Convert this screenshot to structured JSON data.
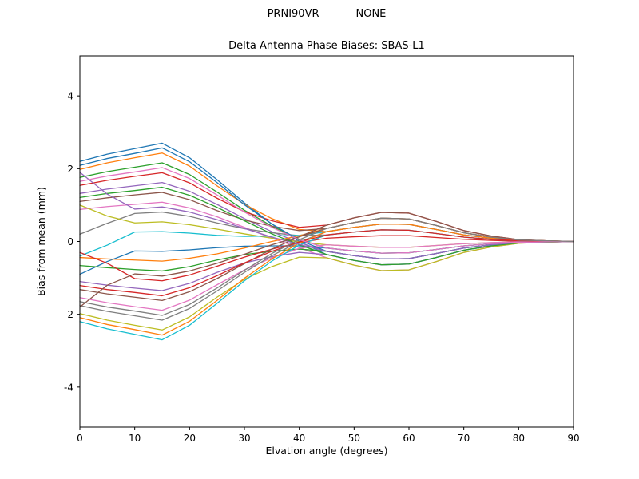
{
  "figure": {
    "suptitle_left": "PRNI90VR",
    "suptitle_right": "NONE",
    "title": "Delta Antenna Phase Biases: SBAS-L1"
  },
  "chart_data": {
    "type": "line",
    "suptitle": "PRNI90VR        NONE",
    "title": "Delta Antenna Phase Biases: SBAS-L1",
    "xlabel": "Elvation angle (degrees)",
    "ylabel": "Bias from mean (mm)",
    "xlim": [
      0,
      90
    ],
    "ylim": [
      -5.1,
      5.1
    ],
    "xticks": [
      0,
      10,
      20,
      30,
      40,
      50,
      60,
      70,
      80,
      90
    ],
    "yticks": [
      -4,
      -2,
      0,
      2,
      4
    ],
    "grid": false,
    "legend": "none",
    "x": [
      0,
      5,
      10,
      15,
      20,
      25,
      30,
      35,
      40,
      45,
      50,
      55,
      60,
      65,
      70,
      75,
      80,
      85,
      90
    ],
    "series": [
      {
        "name": "line-01",
        "color": "#1f77b4",
        "values": [
          2.2,
          2.4,
          2.55,
          2.7,
          2.3,
          1.7,
          1.06,
          0.48,
          0.0,
          -0.36,
          -0.52,
          -0.64,
          -0.62,
          -0.44,
          -0.24,
          -0.12,
          -0.04,
          -0.02,
          0
        ]
      },
      {
        "name": "line-02",
        "color": "#ff7f0e",
        "values": [
          1.98,
          2.16,
          2.3,
          2.43,
          2.07,
          1.53,
          1.02,
          0.63,
          0.33,
          0.27,
          0.39,
          0.48,
          0.47,
          0.33,
          0.18,
          0.09,
          0.03,
          0.01,
          0
        ]
      },
      {
        "name": "line-03",
        "color": "#2ca02c",
        "values": [
          1.76,
          1.92,
          2.04,
          2.16,
          1.84,
          1.36,
          0.86,
          0.42,
          0.06,
          -0.18,
          -0.26,
          -0.32,
          -0.31,
          -0.22,
          -0.12,
          -0.06,
          -0.02,
          -0.01,
          0
        ]
      },
      {
        "name": "line-04",
        "color": "#d62728",
        "values": [
          1.54,
          1.68,
          1.79,
          1.89,
          1.61,
          1.19,
          0.82,
          0.57,
          0.39,
          0.45,
          0.65,
          0.8,
          0.78,
          0.55,
          0.3,
          0.15,
          0.05,
          0.02,
          0
        ]
      },
      {
        "name": "line-05",
        "color": "#9467bd",
        "values": [
          1.32,
          1.44,
          1.53,
          1.62,
          1.38,
          1.02,
          0.63,
          0.27,
          -0.03,
          -0.27,
          -0.39,
          -0.48,
          -0.47,
          -0.33,
          -0.18,
          -0.09,
          -0.03,
          -0.01,
          0
        ]
      },
      {
        "name": "line-06",
        "color": "#8c564b",
        "values": [
          1.1,
          1.2,
          1.28,
          1.35,
          1.15,
          0.85,
          0.59,
          0.42,
          0.3,
          0.36,
          0.52,
          0.64,
          0.62,
          0.44,
          0.24,
          0.12,
          0.04,
          0.02,
          0
        ]
      },
      {
        "name": "line-07",
        "color": "#e377c2",
        "values": [
          0.88,
          0.96,
          1.02,
          1.08,
          0.92,
          0.68,
          0.39,
          0.09,
          -0.17,
          -0.45,
          -0.65,
          -0.8,
          -0.78,
          -0.55,
          -0.3,
          -0.15,
          -0.05,
          -0.02,
          0
        ]
      },
      {
        "name": "line-08",
        "color": "#7f7f7f",
        "values": [
          0.2,
          0.5,
          0.77,
          0.81,
          0.69,
          0.51,
          0.35,
          0.24,
          0.16,
          0.18,
          0.26,
          0.32,
          0.31,
          0.22,
          0.12,
          0.06,
          0.02,
          0.01,
          0
        ]
      },
      {
        "name": "line-09",
        "color": "#bcbd22",
        "values": [
          1.0,
          0.7,
          0.51,
          0.54,
          0.46,
          0.34,
          0.21,
          0.09,
          -0.01,
          -0.09,
          -0.13,
          -0.16,
          -0.16,
          -0.11,
          -0.06,
          -0.03,
          -0.01,
          0,
          0
        ]
      },
      {
        "name": "line-10",
        "color": "#17becf",
        "values": [
          -0.4,
          -0.1,
          0.26,
          0.27,
          0.23,
          0.17,
          0.14,
          0.15,
          0.17,
          0.27,
          0.39,
          0.48,
          0.47,
          0.33,
          0.18,
          0.09,
          0.03,
          0.01,
          0
        ]
      },
      {
        "name": "line-11",
        "color": "#1f77b4",
        "values": [
          -0.9,
          -0.55,
          -0.26,
          -0.27,
          -0.23,
          -0.17,
          -0.13,
          -0.12,
          -0.12,
          -0.18,
          -0.26,
          -0.32,
          -0.31,
          -0.22,
          -0.12,
          -0.06,
          -0.02,
          -0.01,
          0
        ]
      },
      {
        "name": "line-12",
        "color": "#ff7f0e",
        "values": [
          -0.44,
          -0.48,
          -0.51,
          -0.54,
          -0.46,
          -0.34,
          -0.18,
          0.0,
          0.16,
          0.36,
          0.52,
          0.64,
          0.62,
          0.44,
          0.24,
          0.12,
          0.04,
          0.02,
          0
        ]
      },
      {
        "name": "line-13",
        "color": "#2ca02c",
        "values": [
          -0.66,
          -0.72,
          -0.77,
          -0.81,
          -0.69,
          -0.51,
          -0.36,
          -0.27,
          -0.21,
          -0.27,
          -0.39,
          -0.48,
          -0.47,
          -0.33,
          -0.18,
          -0.09,
          -0.03,
          -0.01,
          0
        ]
      },
      {
        "name": "line-14",
        "color": "#d62728",
        "values": [
          -0.3,
          -0.6,
          -1.02,
          -1.08,
          -0.92,
          -0.68,
          -0.43,
          -0.21,
          -0.03,
          0.09,
          0.13,
          0.16,
          0.16,
          0.11,
          0.06,
          0.03,
          0.01,
          0,
          0
        ]
      },
      {
        "name": "line-15",
        "color": "#9467bd",
        "values": [
          -1.1,
          -1.2,
          -1.28,
          -1.35,
          -1.15,
          -0.85,
          -0.59,
          -0.42,
          -0.3,
          -0.36,
          -0.52,
          -0.64,
          -0.62,
          -0.44,
          -0.24,
          -0.12,
          -0.04,
          -0.02,
          0
        ]
      },
      {
        "name": "line-16",
        "color": "#8c564b",
        "values": [
          -1.32,
          -1.44,
          -1.53,
          -1.62,
          -1.38,
          -1.02,
          -0.61,
          -0.21,
          0.13,
          0.45,
          0.65,
          0.8,
          0.78,
          0.55,
          0.3,
          0.15,
          0.05,
          0.02,
          0
        ]
      },
      {
        "name": "line-17",
        "color": "#e377c2",
        "values": [
          -1.54,
          -1.68,
          -1.79,
          -1.89,
          -1.61,
          -1.19,
          -0.78,
          -0.45,
          -0.19,
          -0.09,
          -0.13,
          -0.16,
          -0.16,
          -0.11,
          -0.06,
          -0.03,
          -0.01,
          0,
          0
        ]
      },
      {
        "name": "line-18",
        "color": "#7f7f7f",
        "values": [
          -1.76,
          -1.92,
          -2.04,
          -2.16,
          -1.84,
          -1.36,
          -0.85,
          -0.39,
          -0.01,
          0.27,
          0.39,
          0.48,
          0.47,
          0.33,
          0.18,
          0.09,
          0.03,
          0.01,
          0
        ]
      },
      {
        "name": "line-19",
        "color": "#bcbd22",
        "values": [
          -1.98,
          -2.16,
          -2.3,
          -2.43,
          -2.07,
          -1.53,
          -1.04,
          -0.69,
          -0.43,
          -0.45,
          -0.65,
          -0.8,
          -0.78,
          -0.55,
          -0.3,
          -0.15,
          -0.05,
          -0.02,
          0
        ]
      },
      {
        "name": "line-20",
        "color": "#17becf",
        "values": [
          -2.2,
          -2.4,
          -2.55,
          -2.7,
          -2.3,
          -1.7,
          -1.08,
          -0.54,
          -0.1,
          0.18,
          0.26,
          0.32,
          0.31,
          0.22,
          0.12,
          0.06,
          0.02,
          0.01,
          0
        ]
      },
      {
        "name": "line-21",
        "color": "#1f77b4",
        "values": [
          2.09,
          2.28,
          2.42,
          2.57,
          2.19,
          1.62,
          1.01,
          0.48,
          0.04,
          -0.27,
          -0.39,
          -0.48,
          -0.47,
          -0.33,
          -0.18,
          -0.09,
          -0.03,
          -0.01,
          0
        ]
      },
      {
        "name": "line-22",
        "color": "#ff7f0e",
        "values": [
          -2.09,
          -2.28,
          -2.42,
          -2.57,
          -2.19,
          -1.62,
          -1.01,
          -0.48,
          -0.04,
          0.27,
          0.39,
          0.48,
          0.47,
          0.33,
          0.18,
          0.09,
          0.03,
          0.01,
          0
        ]
      },
      {
        "name": "line-23",
        "color": "#2ca02c",
        "values": [
          1.21,
          1.32,
          1.4,
          1.49,
          1.27,
          0.94,
          0.57,
          0.21,
          -0.09,
          -0.36,
          -0.52,
          -0.64,
          -0.62,
          -0.44,
          -0.24,
          -0.12,
          -0.04,
          -0.02,
          0
        ]
      },
      {
        "name": "line-24",
        "color": "#d62728",
        "values": [
          -1.21,
          -1.32,
          -1.4,
          -1.49,
          -1.27,
          -0.94,
          -0.59,
          -0.27,
          -0.01,
          0.18,
          0.26,
          0.32,
          0.31,
          0.22,
          0.12,
          0.06,
          0.02,
          0.01,
          0
        ]
      },
      {
        "name": "line-25",
        "color": "#9467bd",
        "values": [
          1.9,
          1.3,
          0.89,
          0.95,
          0.81,
          0.6,
          0.36,
          0.12,
          -0.08,
          -0.27,
          -0.39,
          -0.48,
          -0.47,
          -0.33,
          -0.18,
          -0.09,
          -0.03,
          -0.01,
          0
        ]
      },
      {
        "name": "line-26",
        "color": "#8c564b",
        "values": [
          -1.8,
          -1.2,
          -0.89,
          -0.95,
          -0.81,
          -0.6,
          -0.35,
          -0.09,
          0.13,
          0.36,
          0.52,
          0.64,
          0.62,
          0.44,
          0.24,
          0.12,
          0.04,
          0.02,
          0
        ]
      },
      {
        "name": "line-27",
        "color": "#e377c2",
        "values": [
          1.65,
          1.8,
          1.91,
          2.03,
          1.73,
          1.28,
          0.81,
          0.39,
          0.05,
          -0.18,
          -0.26,
          -0.32,
          -0.31,
          -0.22,
          -0.12,
          -0.06,
          -0.02,
          -0.01,
          0
        ]
      },
      {
        "name": "line-28",
        "color": "#7f7f7f",
        "values": [
          -1.65,
          -1.8,
          -1.91,
          -2.03,
          -1.73,
          -1.28,
          -0.79,
          -0.33,
          0.05,
          0.36,
          0.52,
          0.64,
          0.62,
          0.44,
          0.24,
          0.12,
          0.04,
          0.02,
          0
        ]
      }
    ]
  }
}
